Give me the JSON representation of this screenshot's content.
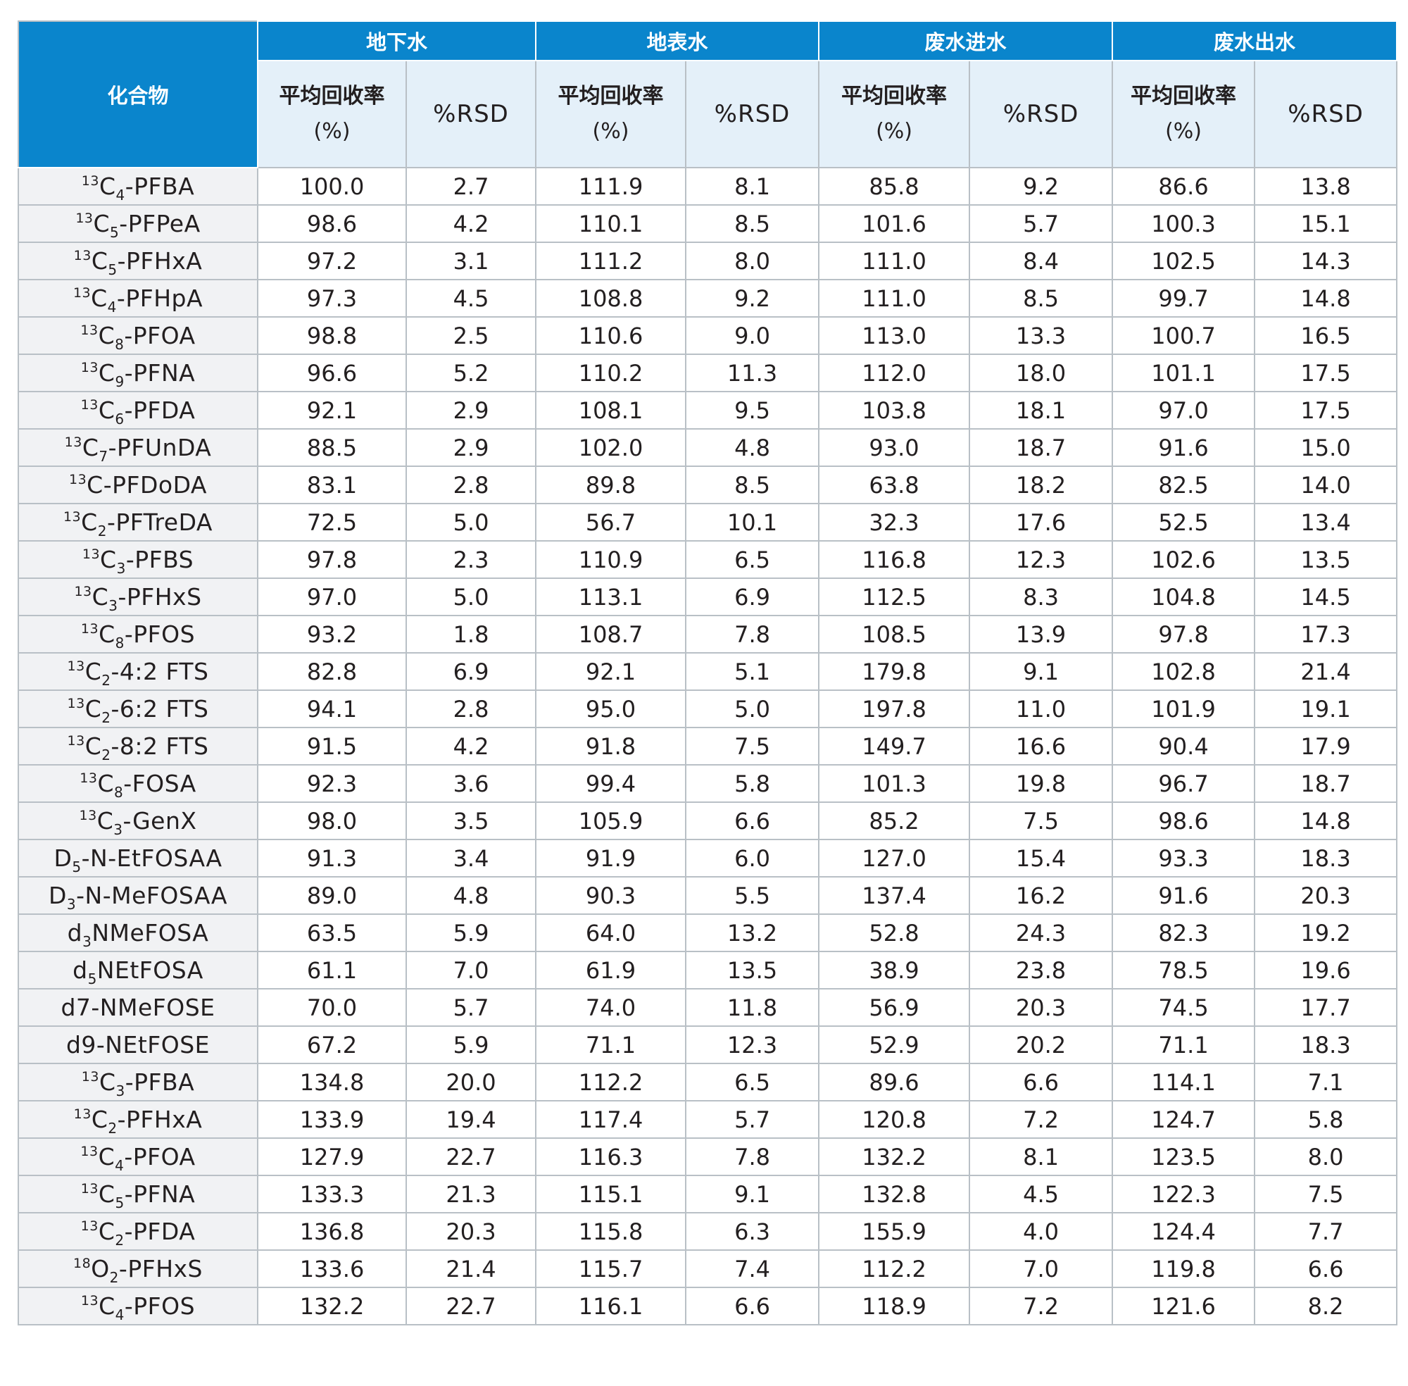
{
  "header": {
    "compound": "化合物",
    "groups": [
      "地下水",
      "地表水",
      "废水进水",
      "废水出水"
    ],
    "recovery_line1": "平均回收率",
    "recovery_line2": "(%)",
    "rsd": "%RSD"
  },
  "rows": [
    {
      "name": [
        [
          "sup",
          "13"
        ],
        [
          "t",
          "C"
        ],
        [
          "sub",
          "4"
        ],
        [
          "t",
          "-PFBA"
        ]
      ],
      "values": [
        "100.0",
        "2.7",
        "111.9",
        "8.1",
        "85.8",
        "9.2",
        "86.6",
        "13.8"
      ]
    },
    {
      "name": [
        [
          "sup",
          "13"
        ],
        [
          "t",
          "C"
        ],
        [
          "sub",
          "5"
        ],
        [
          "t",
          "-PFPeA"
        ]
      ],
      "values": [
        "98.6",
        "4.2",
        "110.1",
        "8.5",
        "101.6",
        "5.7",
        "100.3",
        "15.1"
      ]
    },
    {
      "name": [
        [
          "sup",
          "13"
        ],
        [
          "t",
          "C"
        ],
        [
          "sub",
          "5"
        ],
        [
          "t",
          "-PFHxA"
        ]
      ],
      "values": [
        "97.2",
        "3.1",
        "111.2",
        "8.0",
        "111.0",
        "8.4",
        "102.5",
        "14.3"
      ]
    },
    {
      "name": [
        [
          "sup",
          "13"
        ],
        [
          "t",
          "C"
        ],
        [
          "sub",
          "4"
        ],
        [
          "t",
          "-PFHpA"
        ]
      ],
      "values": [
        "97.3",
        "4.5",
        "108.8",
        "9.2",
        "111.0",
        "8.5",
        "99.7",
        "14.8"
      ]
    },
    {
      "name": [
        [
          "sup",
          "13"
        ],
        [
          "t",
          "C"
        ],
        [
          "sub",
          "8"
        ],
        [
          "t",
          "-PFOA"
        ]
      ],
      "values": [
        "98.8",
        "2.5",
        "110.6",
        "9.0",
        "113.0",
        "13.3",
        "100.7",
        "16.5"
      ]
    },
    {
      "name": [
        [
          "sup",
          "13"
        ],
        [
          "t",
          "C"
        ],
        [
          "sub",
          "9"
        ],
        [
          "t",
          "-PFNA"
        ]
      ],
      "values": [
        "96.6",
        "5.2",
        "110.2",
        "11.3",
        "112.0",
        "18.0",
        "101.1",
        "17.5"
      ]
    },
    {
      "name": [
        [
          "sup",
          "13"
        ],
        [
          "t",
          "C"
        ],
        [
          "sub",
          "6"
        ],
        [
          "t",
          "-PFDA"
        ]
      ],
      "values": [
        "92.1",
        "2.9",
        "108.1",
        "9.5",
        "103.8",
        "18.1",
        "97.0",
        "17.5"
      ]
    },
    {
      "name": [
        [
          "sup",
          "13"
        ],
        [
          "t",
          "C"
        ],
        [
          "sub",
          "7"
        ],
        [
          "t",
          "-PFUnDA"
        ]
      ],
      "values": [
        "88.5",
        "2.9",
        "102.0",
        "4.8",
        "93.0",
        "18.7",
        "91.6",
        "15.0"
      ]
    },
    {
      "name": [
        [
          "sup",
          "13"
        ],
        [
          "t",
          "C-PFDoDA"
        ]
      ],
      "values": [
        "83.1",
        "2.8",
        "89.8",
        "8.5",
        "63.8",
        "18.2",
        "82.5",
        "14.0"
      ]
    },
    {
      "name": [
        [
          "sup",
          "13"
        ],
        [
          "t",
          "C"
        ],
        [
          "sub",
          "2"
        ],
        [
          "t",
          "-PFTreDA"
        ]
      ],
      "values": [
        "72.5",
        "5.0",
        "56.7",
        "10.1",
        "32.3",
        "17.6",
        "52.5",
        "13.4"
      ]
    },
    {
      "name": [
        [
          "sup",
          "13"
        ],
        [
          "t",
          "C"
        ],
        [
          "sub",
          "3"
        ],
        [
          "t",
          "-PFBS"
        ]
      ],
      "values": [
        "97.8",
        "2.3",
        "110.9",
        "6.5",
        "116.8",
        "12.3",
        "102.6",
        "13.5"
      ]
    },
    {
      "name": [
        [
          "sup",
          "13"
        ],
        [
          "t",
          "C"
        ],
        [
          "sub",
          "3"
        ],
        [
          "t",
          "-PFHxS"
        ]
      ],
      "values": [
        "97.0",
        "5.0",
        "113.1",
        "6.9",
        "112.5",
        "8.3",
        "104.8",
        "14.5"
      ]
    },
    {
      "name": [
        [
          "sup",
          "13"
        ],
        [
          "t",
          "C"
        ],
        [
          "sub",
          "8"
        ],
        [
          "t",
          "-PFOS"
        ]
      ],
      "values": [
        "93.2",
        "1.8",
        "108.7",
        "7.8",
        "108.5",
        "13.9",
        "97.8",
        "17.3"
      ]
    },
    {
      "name": [
        [
          "sup",
          "13"
        ],
        [
          "t",
          "C"
        ],
        [
          "sub",
          "2"
        ],
        [
          "t",
          "-4:2 FTS"
        ]
      ],
      "values": [
        "82.8",
        "6.9",
        "92.1",
        "5.1",
        "179.8",
        "9.1",
        "102.8",
        "21.4"
      ]
    },
    {
      "name": [
        [
          "sup",
          "13"
        ],
        [
          "t",
          "C"
        ],
        [
          "sub",
          "2"
        ],
        [
          "t",
          "-6:2 FTS"
        ]
      ],
      "values": [
        "94.1",
        "2.8",
        "95.0",
        "5.0",
        "197.8",
        "11.0",
        "101.9",
        "19.1"
      ]
    },
    {
      "name": [
        [
          "sup",
          "13"
        ],
        [
          "t",
          "C"
        ],
        [
          "sub",
          "2"
        ],
        [
          "t",
          "-8:2 FTS"
        ]
      ],
      "values": [
        "91.5",
        "4.2",
        "91.8",
        "7.5",
        "149.7",
        "16.6",
        "90.4",
        "17.9"
      ]
    },
    {
      "name": [
        [
          "sup",
          "13"
        ],
        [
          "t",
          "C"
        ],
        [
          "sub",
          "8"
        ],
        [
          "t",
          "-FOSA"
        ]
      ],
      "values": [
        "92.3",
        "3.6",
        "99.4",
        "5.8",
        "101.3",
        "19.8",
        "96.7",
        "18.7"
      ]
    },
    {
      "name": [
        [
          "sup",
          "13"
        ],
        [
          "t",
          "C"
        ],
        [
          "sub",
          "3"
        ],
        [
          "t",
          "-GenX"
        ]
      ],
      "values": [
        "98.0",
        "3.5",
        "105.9",
        "6.6",
        "85.2",
        "7.5",
        "98.6",
        "14.8"
      ]
    },
    {
      "name": [
        [
          "t",
          "D"
        ],
        [
          "sub",
          "5"
        ],
        [
          "t",
          "-N-EtFOSAA"
        ]
      ],
      "values": [
        "91.3",
        "3.4",
        "91.9",
        "6.0",
        "127.0",
        "15.4",
        "93.3",
        "18.3"
      ]
    },
    {
      "name": [
        [
          "t",
          "D"
        ],
        [
          "sub",
          "3"
        ],
        [
          "t",
          "-N-MeFOSAA"
        ]
      ],
      "values": [
        "89.0",
        "4.8",
        "90.3",
        "5.5",
        "137.4",
        "16.2",
        "91.6",
        "20.3"
      ]
    },
    {
      "name": [
        [
          "t",
          "d"
        ],
        [
          "sub",
          "3"
        ],
        [
          "t",
          "NMeFOSA"
        ]
      ],
      "values": [
        "63.5",
        "5.9",
        "64.0",
        "13.2",
        "52.8",
        "24.3",
        "82.3",
        "19.2"
      ]
    },
    {
      "name": [
        [
          "t",
          "d"
        ],
        [
          "sub",
          "5"
        ],
        [
          "t",
          "NEtFOSA"
        ]
      ],
      "values": [
        "61.1",
        "7.0",
        "61.9",
        "13.5",
        "38.9",
        "23.8",
        "78.5",
        "19.6"
      ]
    },
    {
      "name": [
        [
          "t",
          "d7-NMeFOSE"
        ]
      ],
      "values": [
        "70.0",
        "5.7",
        "74.0",
        "11.8",
        "56.9",
        "20.3",
        "74.5",
        "17.7"
      ]
    },
    {
      "name": [
        [
          "t",
          "d9-NEtFOSE"
        ]
      ],
      "values": [
        "67.2",
        "5.9",
        "71.1",
        "12.3",
        "52.9",
        "20.2",
        "71.1",
        "18.3"
      ]
    },
    {
      "name": [
        [
          "sup",
          "13"
        ],
        [
          "t",
          "C"
        ],
        [
          "sub",
          "3"
        ],
        [
          "t",
          "-PFBA"
        ]
      ],
      "values": [
        "134.8",
        "20.0",
        "112.2",
        "6.5",
        "89.6",
        "6.6",
        "114.1",
        "7.1"
      ]
    },
    {
      "name": [
        [
          "sup",
          "13"
        ],
        [
          "t",
          "C"
        ],
        [
          "sub",
          "2"
        ],
        [
          "t",
          "-PFHxA"
        ]
      ],
      "values": [
        "133.9",
        "19.4",
        "117.4",
        "5.7",
        "120.8",
        "7.2",
        "124.7",
        "5.8"
      ]
    },
    {
      "name": [
        [
          "sup",
          "13"
        ],
        [
          "t",
          "C"
        ],
        [
          "sub",
          "4"
        ],
        [
          "t",
          "-PFOA"
        ]
      ],
      "values": [
        "127.9",
        "22.7",
        "116.3",
        "7.8",
        "132.2",
        "8.1",
        "123.5",
        "8.0"
      ]
    },
    {
      "name": [
        [
          "sup",
          "13"
        ],
        [
          "t",
          "C"
        ],
        [
          "sub",
          "5"
        ],
        [
          "t",
          "-PFNA"
        ]
      ],
      "values": [
        "133.3",
        "21.3",
        "115.1",
        "9.1",
        "132.8",
        "4.5",
        "122.3",
        "7.5"
      ]
    },
    {
      "name": [
        [
          "sup",
          "13"
        ],
        [
          "t",
          "C"
        ],
        [
          "sub",
          "2"
        ],
        [
          "t",
          "-PFDA"
        ]
      ],
      "values": [
        "136.8",
        "20.3",
        "115.8",
        "6.3",
        "155.9",
        "4.0",
        "124.4",
        "7.7"
      ]
    },
    {
      "name": [
        [
          "sup",
          "18"
        ],
        [
          "t",
          "O"
        ],
        [
          "sub",
          "2"
        ],
        [
          "t",
          "-PFHxS"
        ]
      ],
      "values": [
        "133.6",
        "21.4",
        "115.7",
        "7.4",
        "112.2",
        "7.0",
        "119.8",
        "6.6"
      ]
    },
    {
      "name": [
        [
          "sup",
          "13"
        ],
        [
          "t",
          "C"
        ],
        [
          "sub",
          "4"
        ],
        [
          "t",
          "-PFOS"
        ]
      ],
      "values": [
        "132.2",
        "22.7",
        "116.1",
        "6.6",
        "118.9",
        "7.2",
        "121.6",
        "8.2"
      ]
    }
  ]
}
